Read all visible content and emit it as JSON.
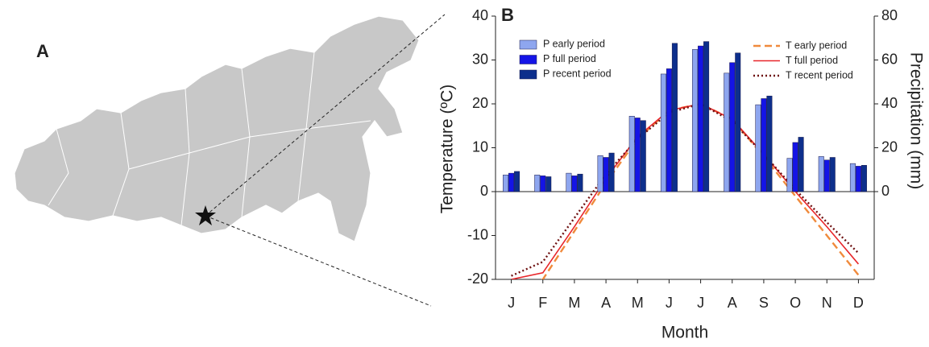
{
  "map": {
    "label": "A"
  },
  "chart_data": {
    "type": "bar",
    "panel_label": "B",
    "x_label": "Month",
    "y_label": "Temperature (ºC)",
    "y2_label": "Precipitation (mm)",
    "categories": [
      "J",
      "F",
      "M",
      "A",
      "M",
      "J",
      "J",
      "A",
      "S",
      "O",
      "N",
      "D"
    ],
    "ylim": [
      -20,
      40
    ],
    "yticks": [
      -20,
      -10,
      0,
      10,
      20,
      30,
      40
    ],
    "y2lim": [
      -40,
      80
    ],
    "y2ticks": [
      0,
      20,
      40,
      60,
      80
    ],
    "series": [
      {
        "name": "P early period",
        "type": "bar",
        "axis": "y2",
        "color": "#8ea6ef",
        "values": [
          7.6,
          7.6,
          8.4,
          16.4,
          34.4,
          53.6,
          64.8,
          54,
          39.6,
          15.2,
          16,
          12.8
        ]
      },
      {
        "name": "P full period",
        "type": "bar",
        "axis": "y2",
        "color": "#1414e6",
        "values": [
          8.4,
          7.2,
          7.2,
          15.6,
          33.6,
          56,
          66.4,
          58.8,
          42.4,
          22.4,
          14.4,
          11.6
        ]
      },
      {
        "name": "P recent period",
        "type": "bar",
        "axis": "y2",
        "color": "#0d2f8c",
        "values": [
          9.2,
          6.8,
          8,
          17.6,
          32.4,
          67.6,
          68.4,
          63.2,
          43.6,
          24.8,
          15.6,
          12
        ]
      },
      {
        "name": "T early period",
        "type": "line",
        "dash": "dashed",
        "color": "#f08a3c",
        "values": [
          -23.5,
          -20,
          -9,
          2,
          12,
          18.5,
          20,
          16.5,
          8,
          -1,
          -10,
          -19
        ]
      },
      {
        "name": "T full period",
        "type": "line",
        "dash": "solid",
        "color": "#e8262a",
        "values": [
          -20,
          -18.5,
          -8,
          3,
          12.5,
          18.5,
          20,
          16.5,
          8.5,
          0,
          -8,
          -16.5
        ]
      },
      {
        "name": "T recent period",
        "type": "line",
        "dash": "dotted",
        "color": "#6e1010",
        "values": [
          -19.2,
          -16,
          -6,
          4,
          12,
          18,
          20,
          16,
          8.5,
          0.5,
          -7,
          -14
        ]
      }
    ]
  }
}
